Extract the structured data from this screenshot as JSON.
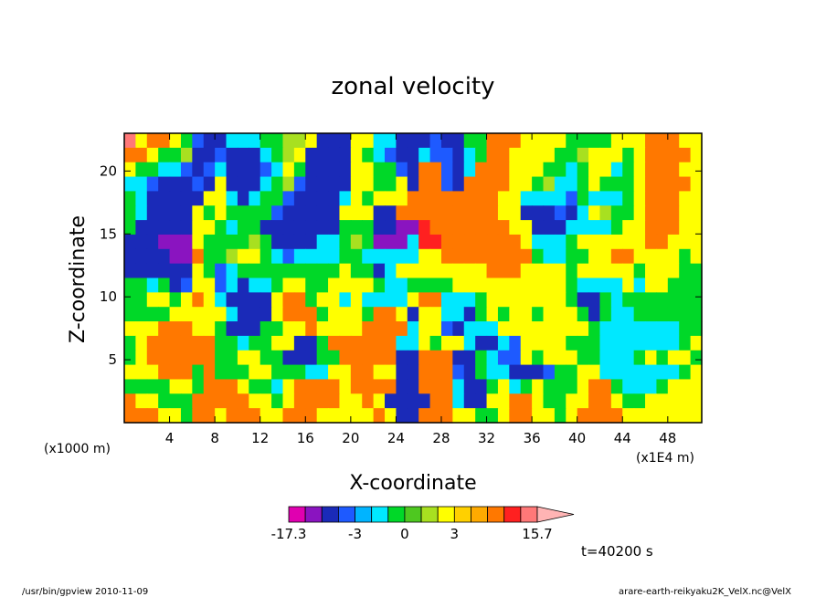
{
  "chart_data": {
    "type": "heatmap",
    "title": "zonal velocity",
    "xlabel": "X-coordinate",
    "ylabel": "Z-coordinate",
    "x_unit_label": "(x1E4 m)",
    "y_unit_label": "(x1000 m)",
    "xlim": [
      0,
      51
    ],
    "ylim": [
      0,
      23
    ],
    "x_ticks": [
      "4",
      "8",
      "12",
      "16",
      "20",
      "24",
      "28",
      "32",
      "36",
      "40",
      "44",
      "48"
    ],
    "x_tick_values": [
      4,
      8,
      12,
      16,
      20,
      24,
      28,
      32,
      36,
      40,
      44,
      48
    ],
    "y_ticks": [
      "5",
      "10",
      "15",
      "20"
    ],
    "y_tick_values": [
      5,
      10,
      15,
      20
    ],
    "colorbar": {
      "labels": [
        "-17.3",
        "-3",
        "0",
        "3",
        "15.7"
      ],
      "levels": [
        -17.3,
        -14,
        -11,
        -8,
        -3,
        -2,
        -1,
        0,
        1,
        2,
        3,
        5,
        8,
        11,
        14,
        15.7
      ],
      "colors": [
        "#e000b0",
        "#8a14c0",
        "#1a2ab8",
        "#1e5aff",
        "#00b4ff",
        "#00e8ff",
        "#00d828",
        "#4ec820",
        "#a8e020",
        "#ffff00",
        "#ffd000",
        "#ffaa00",
        "#ff7800",
        "#ff2020",
        "#ff7878",
        "#ffb4b4"
      ]
    },
    "field_cells": [
      [
        "P",
        "Y",
        "O",
        "O",
        "Y",
        "G",
        "B",
        "N",
        "N",
        "C",
        "C",
        "C",
        "G",
        "G",
        "L",
        "L",
        "Y",
        "N",
        "N",
        "N",
        "Y",
        "Y",
        "C",
        "C",
        "N",
        "N",
        "N",
        "B",
        "N",
        "N",
        "G",
        "G",
        "O",
        "O",
        "O",
        "Y",
        "Y",
        "Y",
        "Y",
        "G",
        "G",
        "G",
        "G",
        "Y",
        "Y",
        "Y",
        "O",
        "O",
        "O",
        "Y",
        "Y"
      ],
      [
        "O",
        "O",
        "Y",
        "G",
        "G",
        "L",
        "N",
        "N",
        "B",
        "N",
        "N",
        "N",
        "C",
        "G",
        "L",
        "Y",
        "N",
        "N",
        "N",
        "N",
        "Y",
        "G",
        "C",
        "B",
        "N",
        "N",
        "C",
        "B",
        "B",
        "N",
        "C",
        "G",
        "O",
        "O",
        "Y",
        "Y",
        "Y",
        "Y",
        "G",
        "G",
        "L",
        "Y",
        "Y",
        "Y",
        "G",
        "Y",
        "O",
        "O",
        "O",
        "O",
        "Y"
      ],
      [
        "Y",
        "G",
        "G",
        "C",
        "C",
        "B",
        "N",
        "B",
        "C",
        "N",
        "N",
        "N",
        "B",
        "C",
        "Y",
        "G",
        "N",
        "N",
        "N",
        "N",
        "Y",
        "Y",
        "G",
        "G",
        "B",
        "N",
        "O",
        "O",
        "B",
        "N",
        "C",
        "O",
        "O",
        "O",
        "Y",
        "Y",
        "Y",
        "G",
        "G",
        "C",
        "G",
        "Y",
        "Y",
        "C",
        "G",
        "Y",
        "O",
        "O",
        "O",
        "Y",
        "Y"
      ],
      [
        "C",
        "C",
        "B",
        "N",
        "N",
        "N",
        "B",
        "N",
        "Y",
        "N",
        "N",
        "N",
        "C",
        "G",
        "L",
        "B",
        "N",
        "N",
        "N",
        "N",
        "Y",
        "Y",
        "G",
        "G",
        "Y",
        "N",
        "O",
        "O",
        "B",
        "N",
        "O",
        "O",
        "O",
        "O",
        "Y",
        "Y",
        "G",
        "L",
        "C",
        "C",
        "G",
        "Y",
        "G",
        "G",
        "G",
        "Y",
        "O",
        "O",
        "O",
        "O",
        "Y"
      ],
      [
        "G",
        "C",
        "N",
        "N",
        "N",
        "N",
        "N",
        "Y",
        "Y",
        "C",
        "N",
        "C",
        "G",
        "G",
        "B",
        "N",
        "N",
        "N",
        "N",
        "C",
        "Y",
        "G",
        "Y",
        "Y",
        "Y",
        "O",
        "O",
        "O",
        "O",
        "O",
        "O",
        "O",
        "O",
        "Y",
        "Y",
        "C",
        "C",
        "C",
        "C",
        "B",
        "G",
        "C",
        "C",
        "C",
        "G",
        "Y",
        "O",
        "O",
        "O",
        "Y",
        "Y"
      ],
      [
        "G",
        "C",
        "N",
        "N",
        "N",
        "N",
        "Y",
        "G",
        "Y",
        "G",
        "G",
        "G",
        "G",
        "B",
        "N",
        "N",
        "N",
        "N",
        "N",
        "Y",
        "Y",
        "Y",
        "N",
        "N",
        "O",
        "O",
        "O",
        "O",
        "O",
        "O",
        "O",
        "O",
        "O",
        "Y",
        "Y",
        "N",
        "N",
        "N",
        "B",
        "N",
        "C",
        "Y",
        "L",
        "G",
        "G",
        "Y",
        "O",
        "O",
        "O",
        "Y",
        "Y"
      ],
      [
        "G",
        "N",
        "N",
        "N",
        "N",
        "N",
        "Y",
        "Y",
        "G",
        "C",
        "G",
        "G",
        "N",
        "N",
        "N",
        "N",
        "N",
        "N",
        "N",
        "G",
        "G",
        "G",
        "N",
        "N",
        "V",
        "V",
        "R",
        "O",
        "O",
        "O",
        "O",
        "O",
        "O",
        "O",
        "Y",
        "Y",
        "N",
        "N",
        "N",
        "C",
        "C",
        "C",
        "C",
        "G",
        "Y",
        "Y",
        "O",
        "O",
        "O",
        "Y",
        "Y"
      ],
      [
        "N",
        "N",
        "N",
        "V",
        "V",
        "V",
        "Y",
        "G",
        "G",
        "G",
        "G",
        "L",
        "G",
        "N",
        "N",
        "N",
        "N",
        "C",
        "C",
        "G",
        "L",
        "G",
        "V",
        "V",
        "V",
        "C",
        "R",
        "R",
        "O",
        "O",
        "O",
        "O",
        "O",
        "O",
        "O",
        "Y",
        "C",
        "C",
        "C",
        "G",
        "Y",
        "Y",
        "Y",
        "Y",
        "Y",
        "Y",
        "O",
        "O",
        "Y",
        "Y",
        "Y"
      ],
      [
        "N",
        "N",
        "N",
        "N",
        "V",
        "V",
        "O",
        "G",
        "G",
        "L",
        "Y",
        "Y",
        "G",
        "C",
        "B",
        "C",
        "C",
        "C",
        "C",
        "G",
        "G",
        "C",
        "C",
        "C",
        "C",
        "C",
        "Y",
        "Y",
        "O",
        "O",
        "O",
        "O",
        "O",
        "O",
        "O",
        "O",
        "G",
        "C",
        "C",
        "G",
        "G",
        "Y",
        "Y",
        "O",
        "O",
        "Y",
        "Y",
        "Y",
        "Y",
        "G",
        "Y"
      ],
      [
        "N",
        "N",
        "N",
        "N",
        "N",
        "N",
        "Y",
        "G",
        "B",
        "C",
        "G",
        "G",
        "G",
        "G",
        "G",
        "G",
        "G",
        "G",
        "G",
        "Y",
        "G",
        "G",
        "N",
        "C",
        "Y",
        "Y",
        "Y",
        "Y",
        "Y",
        "Y",
        "Y",
        "Y",
        "O",
        "O",
        "O",
        "Y",
        "Y",
        "Y",
        "Y",
        "G",
        "Y",
        "Y",
        "Y",
        "Y",
        "Y",
        "G",
        "Y",
        "Y",
        "Y",
        "G",
        "G"
      ],
      [
        "G",
        "G",
        "C",
        "G",
        "N",
        "B",
        "Y",
        "Y",
        "B",
        "C",
        "N",
        "C",
        "C",
        "G",
        "Y",
        "Y",
        "G",
        "G",
        "Y",
        "Y",
        "Y",
        "Y",
        "G",
        "C",
        "C",
        "G",
        "G",
        "G",
        "G",
        "Y",
        "Y",
        "Y",
        "Y",
        "Y",
        "Y",
        "Y",
        "Y",
        "Y",
        "Y",
        "G",
        "C",
        "C",
        "C",
        "C",
        "Y",
        "C",
        "Y",
        "Y",
        "G",
        "G",
        "G"
      ],
      [
        "G",
        "G",
        "Y",
        "Y",
        "G",
        "Y",
        "O",
        "Y",
        "C",
        "N",
        "N",
        "N",
        "N",
        "Y",
        "O",
        "O",
        "G",
        "Y",
        "Y",
        "C",
        "Y",
        "C",
        "C",
        "C",
        "C",
        "Y",
        "O",
        "O",
        "C",
        "C",
        "C",
        "G",
        "Y",
        "Y",
        "Y",
        "Y",
        "Y",
        "Y",
        "Y",
        "G",
        "N",
        "N",
        "G",
        "C",
        "G",
        "G",
        "G",
        "G",
        "G",
        "G",
        "G"
      ],
      [
        "G",
        "G",
        "G",
        "G",
        "Y",
        "Y",
        "Y",
        "Y",
        "Y",
        "C",
        "N",
        "N",
        "N",
        "Y",
        "O",
        "O",
        "O",
        "G",
        "Y",
        "Y",
        "Y",
        "G",
        "O",
        "O",
        "Y",
        "N",
        "Y",
        "Y",
        "C",
        "C",
        "N",
        "G",
        "Y",
        "G",
        "Y",
        "Y",
        "G",
        "Y",
        "Y",
        "Y",
        "G",
        "N",
        "G",
        "C",
        "C",
        "G",
        "G",
        "G",
        "G",
        "G",
        "G"
      ],
      [
        "Y",
        "Y",
        "Y",
        "O",
        "O",
        "O",
        "Y",
        "Y",
        "G",
        "N",
        "N",
        "N",
        "G",
        "G",
        "Y",
        "Y",
        "O",
        "Y",
        "Y",
        "Y",
        "Y",
        "O",
        "O",
        "O",
        "O",
        "C",
        "Y",
        "Y",
        "B",
        "N",
        "C",
        "C",
        "C",
        "Y",
        "Y",
        "Y",
        "Y",
        "Y",
        "Y",
        "Y",
        "Y",
        "G",
        "C",
        "C",
        "C",
        "C",
        "C",
        "C",
        "C",
        "G",
        "G"
      ],
      [
        "G",
        "Y",
        "O",
        "O",
        "O",
        "O",
        "O",
        "O",
        "G",
        "G",
        "C",
        "G",
        "G",
        "Y",
        "Y",
        "N",
        "N",
        "G",
        "O",
        "O",
        "O",
        "O",
        "O",
        "O",
        "C",
        "C",
        "Y",
        "G",
        "Y",
        "Y",
        "C",
        "N",
        "N",
        "C",
        "B",
        "Y",
        "Y",
        "Y",
        "Y",
        "G",
        "G",
        "G",
        "C",
        "C",
        "C",
        "C",
        "C",
        "C",
        "C",
        "G",
        "Y"
      ],
      [
        "G",
        "Y",
        "O",
        "O",
        "O",
        "O",
        "O",
        "O",
        "G",
        "G",
        "Y",
        "Y",
        "G",
        "G",
        "N",
        "N",
        "N",
        "G",
        "G",
        "O",
        "O",
        "O",
        "O",
        "O",
        "N",
        "N",
        "O",
        "O",
        "O",
        "N",
        "N",
        "G",
        "C",
        "B",
        "B",
        "Y",
        "G",
        "Y",
        "Y",
        "Y",
        "G",
        "G",
        "C",
        "C",
        "C",
        "G",
        "Y",
        "G",
        "Y",
        "Y",
        "G"
      ],
      [
        "Y",
        "Y",
        "Y",
        "O",
        "O",
        "O",
        "G",
        "O",
        "G",
        "G",
        "G",
        "Y",
        "Y",
        "G",
        "G",
        "G",
        "C",
        "C",
        "Y",
        "Y",
        "O",
        "O",
        "Y",
        "Y",
        "N",
        "N",
        "O",
        "O",
        "O",
        "B",
        "N",
        "G",
        "C",
        "C",
        "N",
        "N",
        "N",
        "B",
        "G",
        "G",
        "Y",
        "Y",
        "C",
        "C",
        "C",
        "C",
        "C",
        "C",
        "C",
        "G",
        "Y"
      ],
      [
        "G",
        "G",
        "G",
        "G",
        "Y",
        "Y",
        "G",
        "O",
        "O",
        "O",
        "Y",
        "G",
        "G",
        "C",
        "Y",
        "O",
        "O",
        "O",
        "O",
        "Y",
        "O",
        "O",
        "O",
        "O",
        "N",
        "N",
        "O",
        "O",
        "O",
        "C",
        "N",
        "N",
        "G",
        "Y",
        "C",
        "G",
        "Y",
        "G",
        "G",
        "G",
        "Y",
        "O",
        "O",
        "G",
        "C",
        "C",
        "C",
        "G",
        "Y",
        "Y",
        "Y"
      ],
      [
        "O",
        "Y",
        "Y",
        "G",
        "G",
        "G",
        "O",
        "O",
        "O",
        "O",
        "O",
        "Y",
        "Y",
        "G",
        "Y",
        "O",
        "O",
        "O",
        "O",
        "Y",
        "Y",
        "O",
        "Y",
        "N",
        "N",
        "N",
        "N",
        "O",
        "O",
        "C",
        "N",
        "N",
        "Y",
        "Y",
        "O",
        "O",
        "Y",
        "G",
        "G",
        "Y",
        "Y",
        "O",
        "O",
        "Y",
        "G",
        "G",
        "Y",
        "Y",
        "Y",
        "Y",
        "Y"
      ],
      [
        "O",
        "O",
        "O",
        "Y",
        "Y",
        "G",
        "O",
        "O",
        "Y",
        "O",
        "O",
        "O",
        "Y",
        "Y",
        "O",
        "O",
        "O",
        "Y",
        "Y",
        "Y",
        "Y",
        "Y",
        "O",
        "Y",
        "N",
        "N",
        "O",
        "O",
        "O",
        "Y",
        "Y",
        "G",
        "G",
        "Y",
        "O",
        "O",
        "Y",
        "Y",
        "G",
        "Y",
        "O",
        "O",
        "O",
        "O",
        "Y",
        "Y",
        "Y",
        "Y",
        "Y",
        "Y",
        "Y"
      ]
    ],
    "field_legend": {
      "P": "#ff7878",
      "V": "#8a14c0",
      "N": "#1a2ab8",
      "B": "#1e5aff",
      "C": "#00e8ff",
      "G": "#00d828",
      "L": "#a8e020",
      "Y": "#ffff00",
      "O": "#ff7800",
      "R": "#ff2020"
    }
  },
  "annotations": {
    "time": "t=40200 s",
    "footer_left": "/usr/bin/gpview  2010-11-09",
    "footer_right": "arare-earth-reikyaku2K_VelX.nc@VelX"
  }
}
